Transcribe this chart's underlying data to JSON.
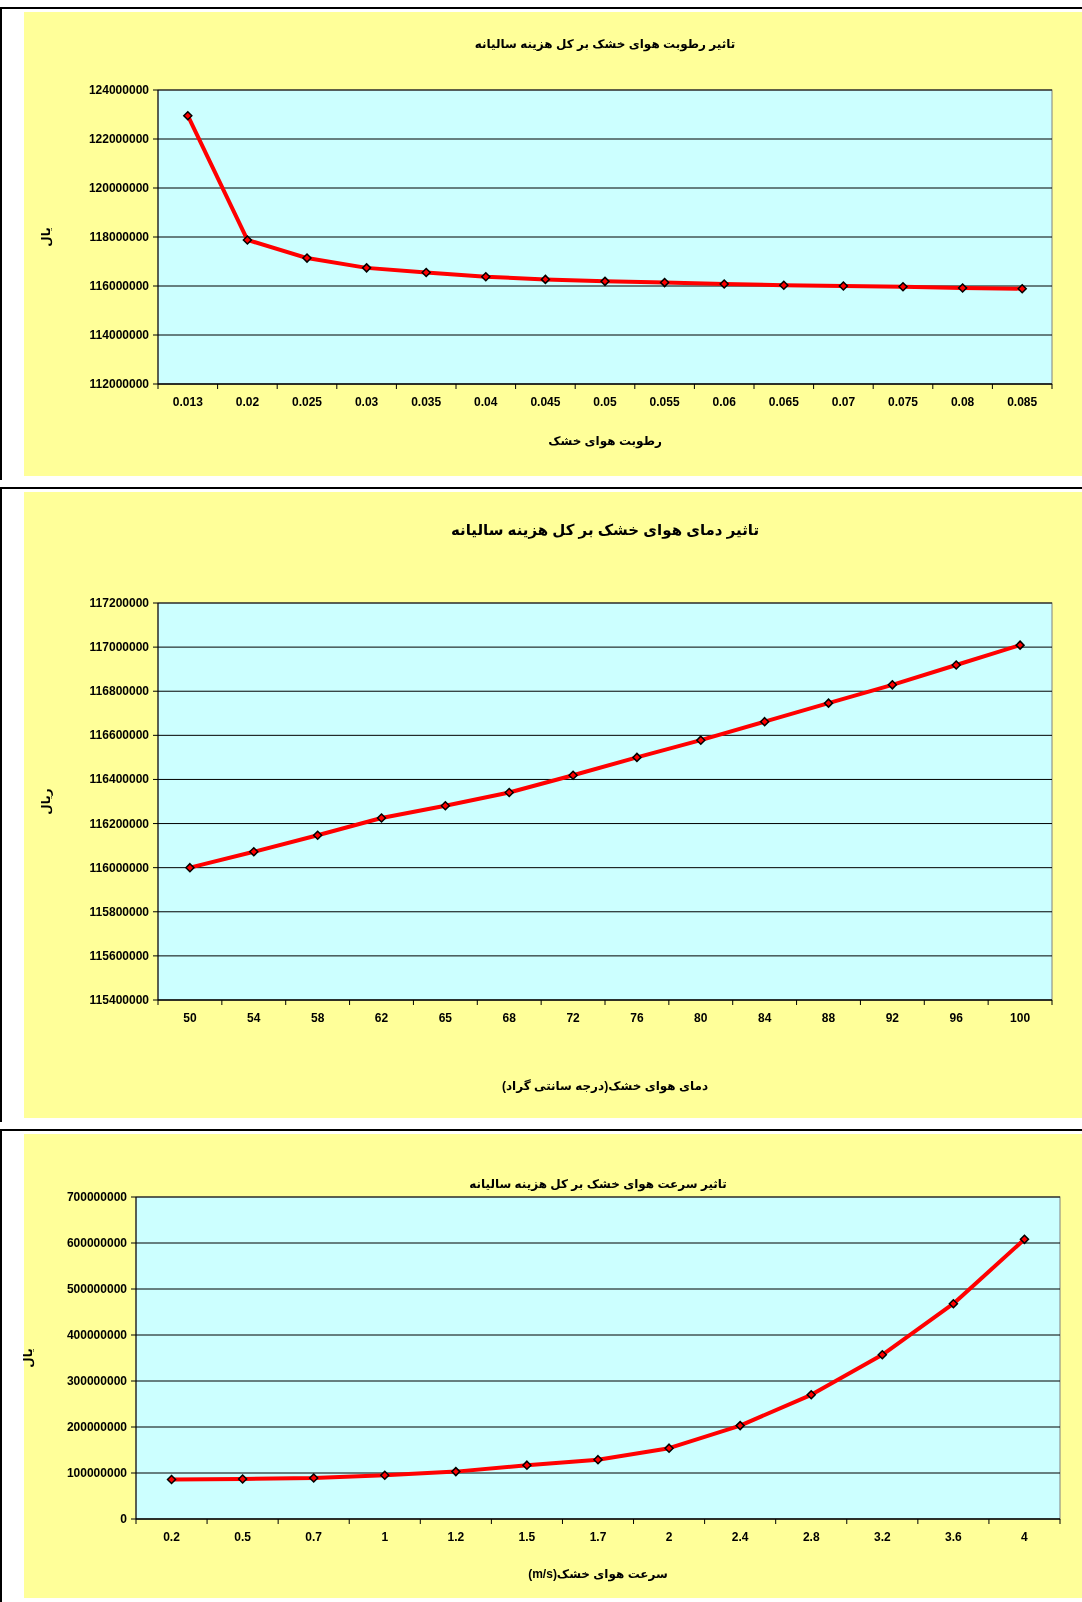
{
  "chart_data": [
    {
      "type": "line",
      "title": "تاثیر رطوبت هوای خشک بر کل هزینه سالیانه",
      "xlabel": "رطوبت هوای خشک",
      "ylabel": "یال",
      "categories": [
        "0.013",
        "0.02",
        "0.025",
        "0.03",
        "0.035",
        "0.04",
        "0.045",
        "0.05",
        "0.055",
        "0.06",
        "0.065",
        "0.07",
        "0.075",
        "0.08",
        "0.085"
      ],
      "series": [
        {
          "color": "#ff0000",
          "values": [
            122950000,
            117880000,
            117140000,
            116740000,
            116550000,
            116380000,
            116270000,
            116190000,
            116140000,
            116080000,
            116030000,
            116000000,
            115970000,
            115920000,
            115890000
          ]
        }
      ],
      "ylim": [
        112000000,
        124000000
      ],
      "yticks": [
        112000000,
        114000000,
        116000000,
        118000000,
        120000000,
        122000000,
        124000000
      ],
      "grid": "y",
      "marker": "diamond",
      "line_style": "solid"
    },
    {
      "type": "line",
      "title": "تاثیر دمای هوای خشک بر کل هزینه سالیانه",
      "xlabel": "دمای هوای خشک(درجه سانتی گراد)",
      "ylabel": "ریال",
      "categories": [
        "50",
        "54",
        "58",
        "62",
        "65",
        "68",
        "72",
        "76",
        "80",
        "84",
        "88",
        "92",
        "96",
        "100"
      ],
      "series": [
        {
          "color": "#ff0000",
          "values": [
            116000000,
            116072000,
            116147000,
            116225000,
            116281000,
            116341000,
            116419000,
            116500000,
            116578000,
            116662000,
            116746000,
            116829000,
            116919000,
            117009000
          ]
        }
      ],
      "ylim": [
        115400000,
        117200000
      ],
      "yticks": [
        115400000,
        115600000,
        115800000,
        116000000,
        116200000,
        116400000,
        116600000,
        116800000,
        117000000,
        117200000
      ],
      "grid": "y",
      "marker": "diamond",
      "line_style": "solid"
    },
    {
      "type": "line",
      "title": "تاثیر سرعت هوای خشک بر کل هزینه سالیانه",
      "xlabel": "سرعت هوای خشک(m/s)",
      "ylabel": "یال",
      "categories": [
        "0.2",
        "0.5",
        "0.7",
        "1",
        "1.2",
        "1.5",
        "1.7",
        "2",
        "2.4",
        "2.8",
        "3.2",
        "3.6",
        "4"
      ],
      "series": [
        {
          "color": "#ff0000",
          "values": [
            86000000,
            87000000,
            89000000,
            95000000,
            103000000,
            117000000,
            129000000,
            154000000,
            203000000,
            270000000,
            357000000,
            468000000,
            608000000
          ]
        }
      ],
      "ylim": [
        0,
        700000000
      ],
      "yticks": [
        0,
        100000000,
        200000000,
        300000000,
        400000000,
        500000000,
        600000000,
        700000000
      ],
      "grid": "y",
      "marker": "diamond",
      "line_style": "solid"
    }
  ]
}
